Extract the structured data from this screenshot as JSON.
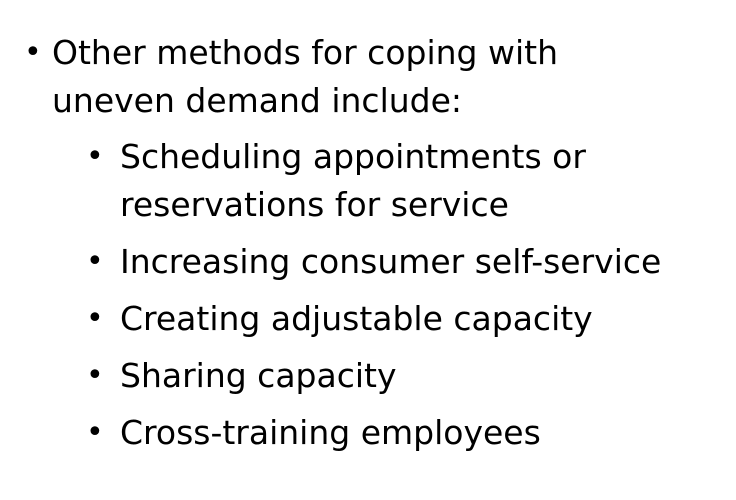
{
  "main_bullet": {
    "symbol": "•",
    "text": "Other methods for coping with uneven demand include:"
  },
  "sub_bullets": [
    {
      "symbol": "•",
      "text": "Scheduling appointments or reservations for service"
    },
    {
      "symbol": "•",
      "text": "Increasing consumer self-service"
    },
    {
      "symbol": "•",
      "text": "Creating adjustable capacity"
    },
    {
      "symbol": "•",
      "text": "Sharing capacity"
    },
    {
      "symbol": "•",
      "text": "Cross-training employees"
    }
  ]
}
